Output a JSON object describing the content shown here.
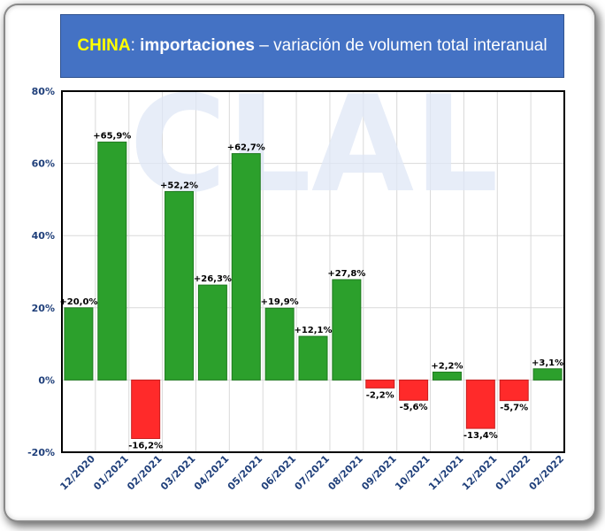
{
  "title": {
    "country": "CHINA",
    "colon": ": ",
    "bold_part": "importaciones",
    "rest": " – variación de volumen total interanual"
  },
  "watermark": "CLAL",
  "colors": {
    "positive": "#2ca02c",
    "negative": "#ff2a2a",
    "axis_text": "#1f3f7a",
    "title_bg": "#4472c4",
    "title_country": "#ffff00"
  },
  "chart_data": {
    "type": "bar",
    "categories": [
      "12/2020",
      "01/2021",
      "02/2021",
      "03/2021",
      "04/2021",
      "05/2021",
      "06/2021",
      "07/2021",
      "08/2021",
      "09/2021",
      "10/2021",
      "11/2021",
      "12/2021",
      "01/2022",
      "02/2022"
    ],
    "values": [
      20.0,
      65.9,
      -16.2,
      52.2,
      26.3,
      62.7,
      19.9,
      12.1,
      27.8,
      -2.2,
      -5.6,
      2.2,
      -13.4,
      -5.7,
      3.1
    ],
    "data_labels": [
      "+20,0%",
      "+65,9%",
      "-16,2%",
      "+52,2%",
      "+26,3%",
      "+62,7%",
      "+19,9%",
      "+12,1%",
      "+27,8%",
      "-2,2%",
      "-5,6%",
      "+2,2%",
      "-13,4%",
      "-5,7%",
      "+3,1%"
    ],
    "y_ticks": [
      -20,
      0,
      20,
      40,
      60,
      80
    ],
    "y_tick_labels": [
      "-20%",
      "0%",
      "20%",
      "40%",
      "60%",
      "80%"
    ],
    "ylim": [
      -20,
      80
    ],
    "grid": true,
    "title": "CHINA: importaciones – variación de volumen total interanual"
  }
}
